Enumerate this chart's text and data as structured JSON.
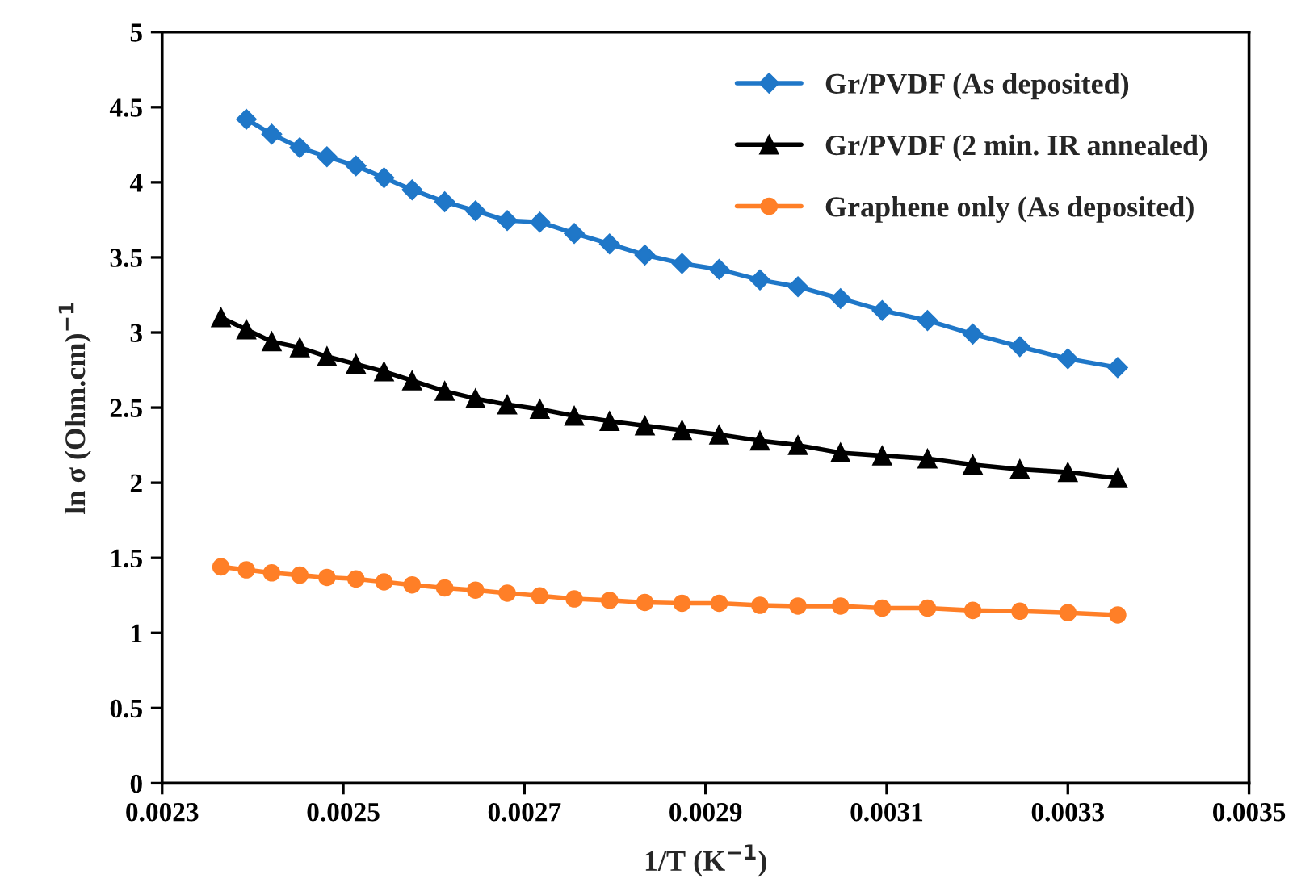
{
  "chart_data": {
    "type": "line",
    "xlabel": "1/T (K$^{−1}$)",
    "ylabel": "ln σ (Ohm.cm)$^{−1}$",
    "xlim": [
      0.0023,
      0.0035
    ],
    "xticks": [
      {
        "value": 0.0023,
        "label": "0.0023"
      },
      {
        "value": 0.0025,
        "label": "0.0025"
      },
      {
        "value": 0.0027,
        "label": "0.0027"
      },
      {
        "value": 0.0029,
        "label": "0.0029"
      },
      {
        "value": 0.0031,
        "label": "0.0031"
      },
      {
        "value": 0.0033,
        "label": "0.0033"
      },
      {
        "value": 0.0035,
        "label": "0.0035"
      }
    ],
    "ylim": [
      0,
      5
    ],
    "yticks": [
      0,
      0.5,
      1,
      1.5,
      2,
      2.5,
      3,
      3.5,
      4,
      4.5,
      5
    ],
    "grid": false,
    "legend": "top right",
    "series": [
      {
        "name": "Gr/PVDF (As deposited)",
        "color": "#1f77c8",
        "marker": "diamond",
        "x": [
          0.002393,
          0.002421,
          0.002452,
          0.002482,
          0.002514,
          0.002545,
          0.002576,
          0.002612,
          0.002646,
          0.002681,
          0.002717,
          0.002755,
          0.002794,
          0.002833,
          0.002874,
          0.002915,
          0.00296,
          0.003002,
          0.003049,
          0.003095,
          0.003145,
          0.003195,
          0.003247,
          0.0033,
          0.003355
        ],
        "values": [
          4.42,
          4.32,
          4.23,
          4.17,
          4.11,
          4.03,
          3.95,
          3.87,
          3.81,
          3.745,
          3.735,
          3.66,
          3.59,
          3.516,
          3.46,
          3.42,
          3.35,
          3.305,
          3.226,
          3.147,
          3.08,
          2.99,
          2.906,
          2.825,
          2.767
        ]
      },
      {
        "name": "Gr/PVDF (2 min. IR annealed)",
        "color": "#000000",
        "marker": "triangle",
        "x": [
          0.002365,
          0.002393,
          0.002421,
          0.002452,
          0.002482,
          0.002514,
          0.002545,
          0.002576,
          0.002612,
          0.002646,
          0.002681,
          0.002717,
          0.002755,
          0.002794,
          0.002833,
          0.002874,
          0.002915,
          0.00296,
          0.003002,
          0.003049,
          0.003095,
          0.003145,
          0.003195,
          0.003247,
          0.0033,
          0.003355
        ],
        "values": [
          3.1,
          3.02,
          2.94,
          2.9,
          2.84,
          2.79,
          2.74,
          2.68,
          2.61,
          2.56,
          2.52,
          2.49,
          2.445,
          2.41,
          2.38,
          2.35,
          2.32,
          2.28,
          2.25,
          2.2,
          2.18,
          2.16,
          2.12,
          2.09,
          2.07,
          2.03
        ]
      },
      {
        "name": "Graphene only (As deposited)",
        "color": "#ff7f27",
        "marker": "circle",
        "x": [
          0.002365,
          0.002393,
          0.002421,
          0.002452,
          0.002482,
          0.002514,
          0.002545,
          0.002576,
          0.002612,
          0.002646,
          0.002681,
          0.002717,
          0.002755,
          0.002794,
          0.002833,
          0.002874,
          0.002915,
          0.00296,
          0.003002,
          0.003049,
          0.003095,
          0.003145,
          0.003195,
          0.003247,
          0.0033,
          0.003355
        ],
        "values": [
          1.44,
          1.42,
          1.4,
          1.385,
          1.37,
          1.36,
          1.34,
          1.32,
          1.3,
          1.285,
          1.265,
          1.247,
          1.227,
          1.217,
          1.203,
          1.198,
          1.198,
          1.184,
          1.179,
          1.179,
          1.165,
          1.165,
          1.15,
          1.145,
          1.135,
          1.12
        ]
      }
    ]
  }
}
